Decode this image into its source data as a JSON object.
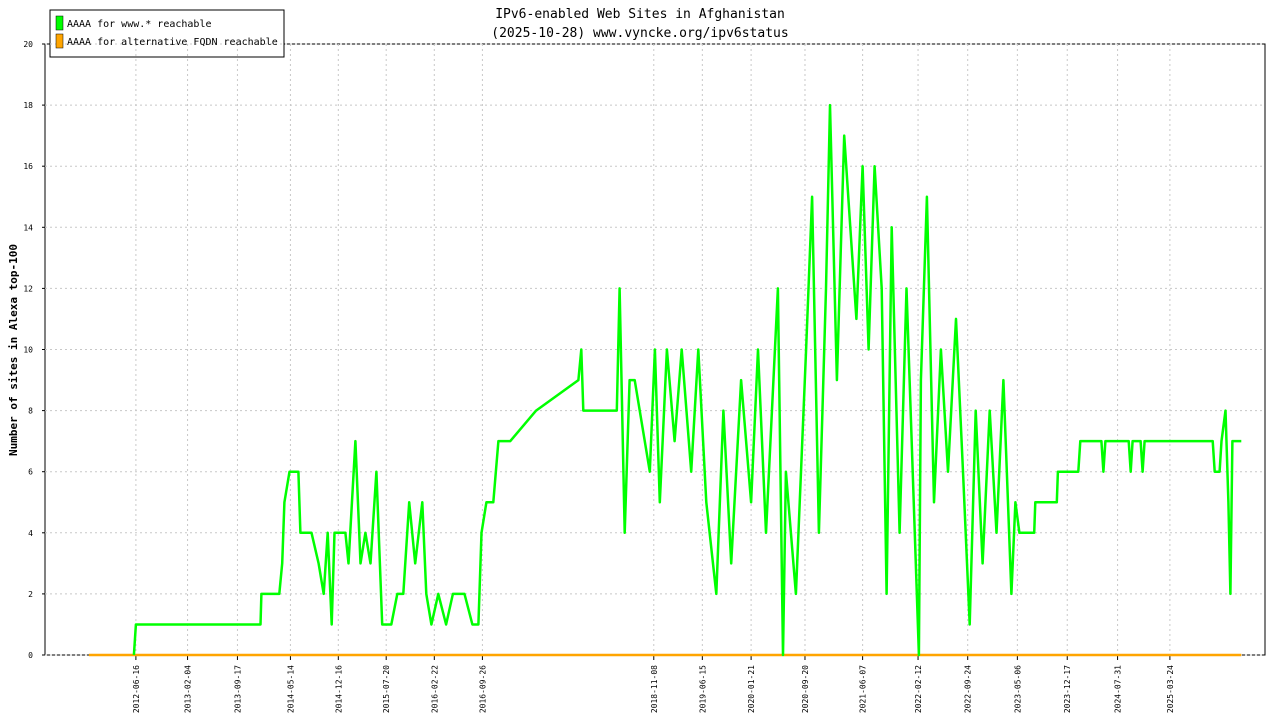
{
  "chart_data": {
    "type": "line",
    "title": "IPv6-enabled Web Sites in Afghanistan",
    "subtitle": "(2025-10-28) www.vyncke.org/ipv6status",
    "y_label": "Number of sites in Alexa top-100",
    "xlim": [
      "2011-05-03",
      "2026-05-27"
    ],
    "xticks": [
      "2012-06-16",
      "2013-02-04",
      "2013-09-17",
      "2014-05-14",
      "2014-12-16",
      "2015-07-20",
      "2016-02-22",
      "2016-09-26",
      "2018-11-08",
      "2019-06-15",
      "2020-01-21",
      "2020-09-20",
      "2021-06-07",
      "2022-02-12",
      "2022-09-24",
      "2023-05-06",
      "2023-12-17",
      "2024-07-31",
      "2025-03-24"
    ],
    "ylim": [
      0,
      20
    ],
    "yticks": [
      0,
      2,
      4,
      6,
      8,
      10,
      12,
      14,
      16,
      18,
      20
    ],
    "grid": true,
    "legend": "top-left",
    "series": [
      {
        "name": "AAAA for www.* reachable",
        "color": "#00ff00",
        "x": [
          "2012-06-07",
          "2012-06-16",
          "2013-12-30",
          "2014-01-03",
          "2014-03-25",
          "2014-04-07",
          "2014-04-17",
          "2014-05-10",
          "2014-06-19",
          "2014-06-28",
          "2014-08-17",
          "2014-09-18",
          "2014-10-11",
          "2014-10-29",
          "2014-11-16",
          "2014-11-29",
          "2015-01-17",
          "2015-01-31",
          "2015-03-03",
          "2015-03-26",
          "2015-04-17",
          "2015-05-10",
          "2015-06-06",
          "2015-07-02",
          "2015-08-12",
          "2015-09-08",
          "2015-10-05",
          "2015-11-01",
          "2015-11-28",
          "2015-12-30",
          "2016-01-17",
          "2016-02-09",
          "2016-03-11",
          "2016-04-15",
          "2016-05-16",
          "2016-07-07",
          "2016-08-12",
          "2016-09-08",
          "2016-09-22",
          "2016-10-14",
          "2016-11-14",
          "2016-12-07",
          "2017-01-30",
          "2017-05-26",
          "2017-12-03",
          "2017-12-16",
          "2017-12-25",
          "2018-05-25",
          "2018-06-07",
          "2018-06-30",
          "2018-07-22",
          "2018-08-14",
          "2018-10-21",
          "2018-11-13",
          "2018-12-05",
          "2019-01-06",
          "2019-02-10",
          "2019-03-14",
          "2019-04-26",
          "2019-05-28",
          "2019-07-03",
          "2019-08-17",
          "2019-09-18",
          "2019-10-23",
          "2019-12-07",
          "2020-01-21",
          "2020-02-21",
          "2020-03-28",
          "2020-05-21",
          "2020-06-13",
          "2020-06-26",
          "2020-08-10",
          "2020-09-25",
          "2020-10-22",
          "2020-11-22",
          "2020-12-24",
          "2021-01-11",
          "2021-02-11",
          "2021-03-16",
          "2021-05-10",
          "2021-06-07",
          "2021-07-04",
          "2021-07-31",
          "2021-09-01",
          "2021-09-23",
          "2021-10-16",
          "2021-11-21",
          "2021-12-22",
          "2022-02-16",
          "2022-02-25",
          "2022-03-24",
          "2022-04-25",
          "2022-05-26",
          "2022-06-27",
          "2022-08-02",
          "2022-09-03",
          "2022-10-03",
          "2022-10-30",
          "2022-11-30",
          "2023-01-01",
          "2023-02-01",
          "2023-03-04",
          "2023-04-09",
          "2023-04-27",
          "2023-05-15",
          "2023-07-21",
          "2023-07-26",
          "2023-10-31",
          "2023-11-05",
          "2024-02-05",
          "2024-02-14",
          "2024-05-19",
          "2024-05-28",
          "2024-06-06",
          "2024-09-19",
          "2024-09-28",
          "2024-10-07",
          "2024-11-12",
          "2024-11-21",
          "2024-11-30",
          "2025-10-03",
          "2025-10-12",
          "2025-11-03",
          "2025-11-12",
          "2025-11-30",
          "2025-12-13",
          "2025-12-22",
          "2025-12-31",
          "2026-02-09"
        ],
        "values": [
          0,
          1,
          1,
          2,
          2,
          3,
          5,
          6,
          6,
          4,
          4,
          3,
          2,
          4,
          1,
          4,
          4,
          3,
          7,
          3,
          4,
          3,
          6,
          1,
          1,
          2,
          2,
          5,
          3,
          5,
          2,
          1,
          2,
          1,
          2,
          2,
          1,
          1,
          4,
          5,
          5,
          7,
          7,
          8,
          9,
          10,
          8,
          8,
          12,
          4,
          9,
          9,
          6,
          10,
          5,
          10,
          7,
          10,
          6,
          10,
          5,
          2,
          8,
          3,
          9,
          5,
          10,
          4,
          12,
          0,
          6,
          2,
          10,
          15,
          4,
          12,
          18,
          9,
          17,
          11,
          16,
          10,
          16,
          12,
          2,
          14,
          4,
          12,
          0,
          9,
          15,
          5,
          10,
          6,
          11,
          6,
          1,
          8,
          3,
          8,
          4,
          9,
          2,
          5,
          4,
          4,
          5,
          5,
          6,
          6,
          7,
          7,
          6,
          7,
          7,
          6,
          7,
          7,
          6,
          7,
          7,
          6,
          6,
          7,
          8,
          5,
          2,
          7,
          7
        ]
      },
      {
        "name": "AAAA for alternative FQDN reachable",
        "color": "#ffa500",
        "x": [
          "2011-11-17",
          "2026-02-09"
        ],
        "values": [
          0,
          0
        ]
      }
    ]
  }
}
